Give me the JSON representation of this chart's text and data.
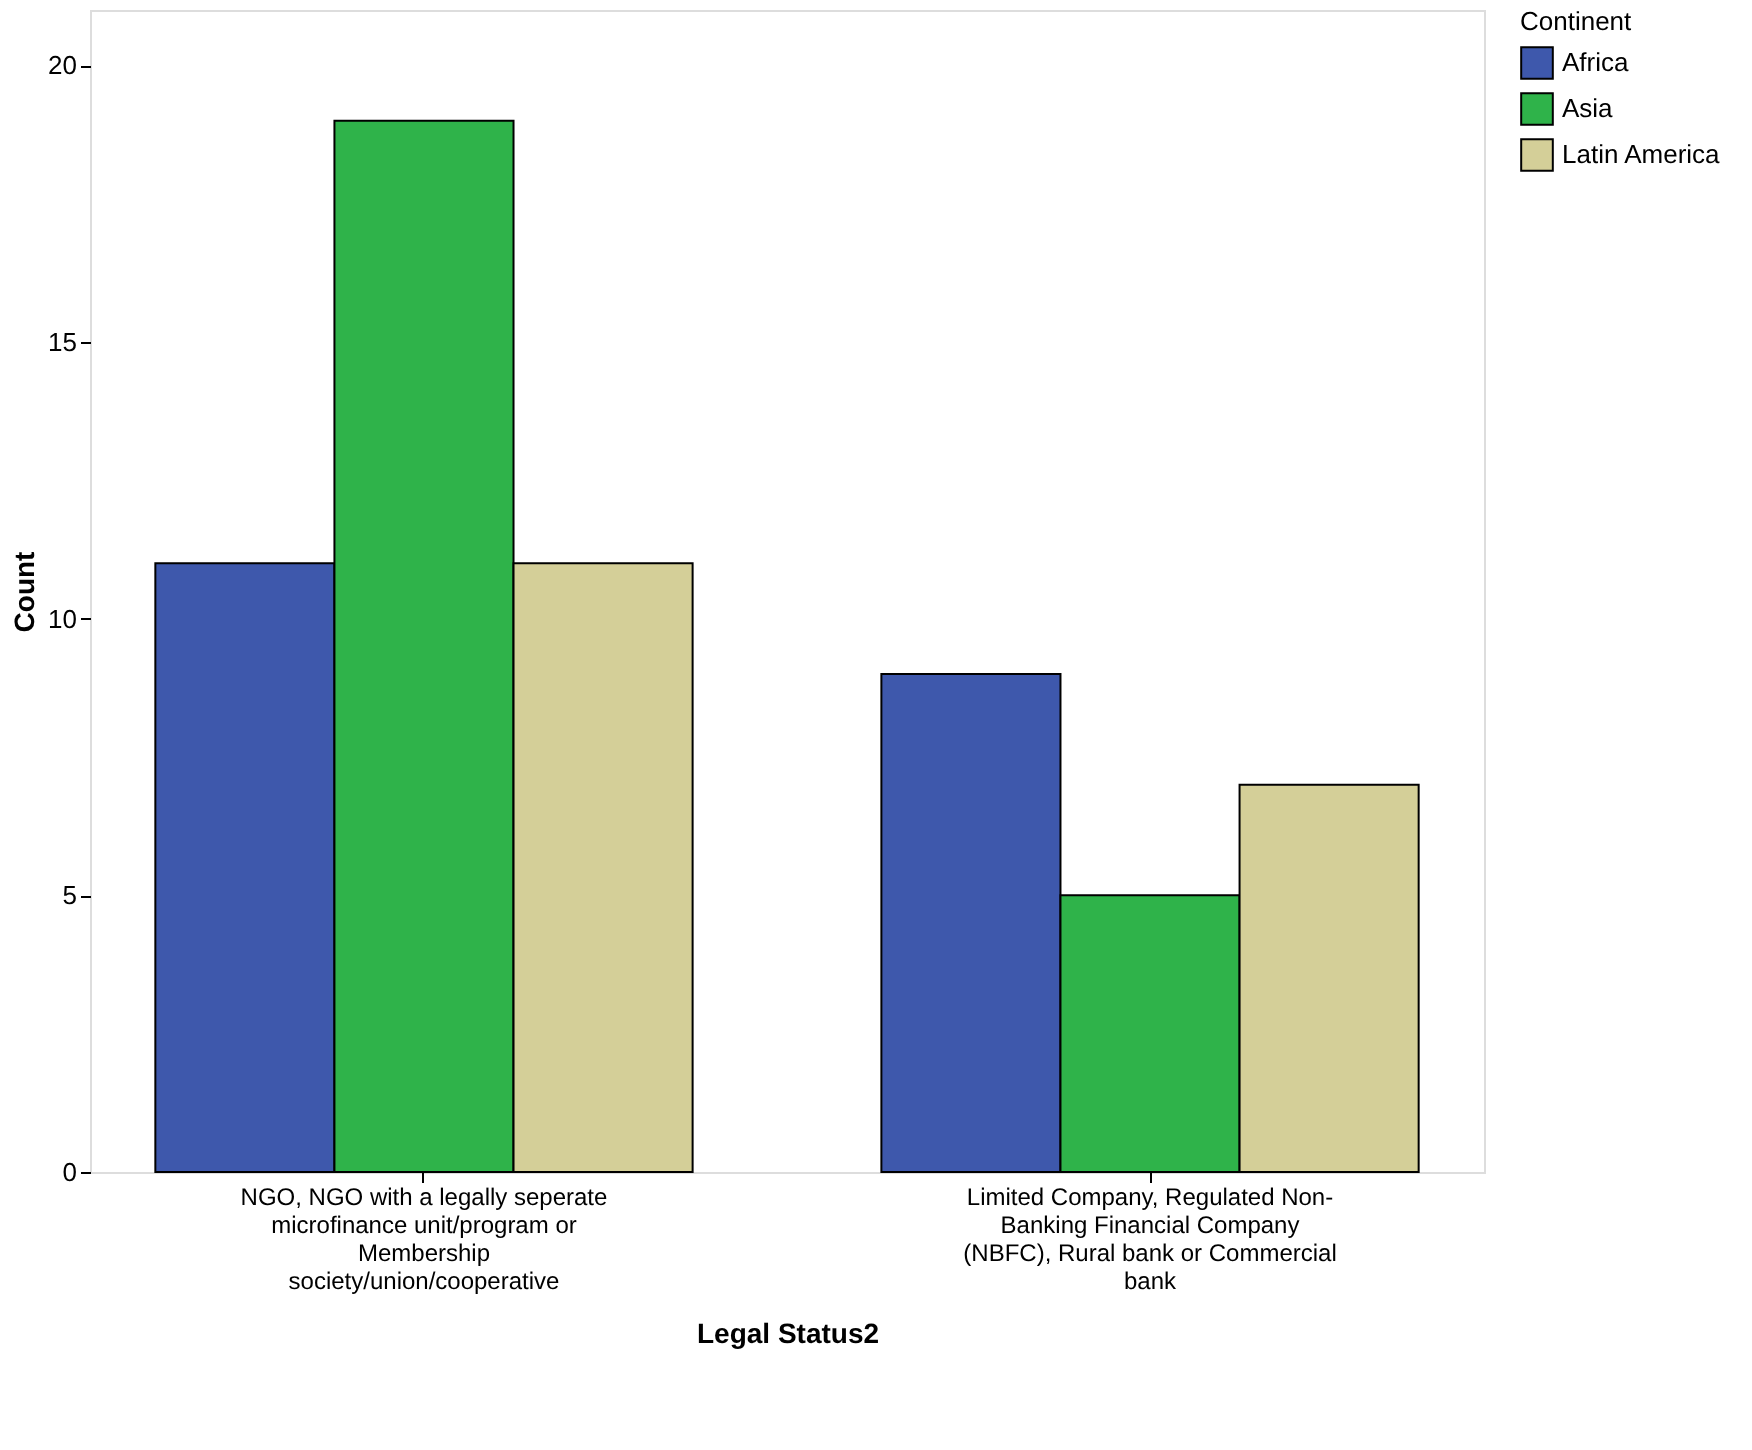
{
  "chart_data": {
    "type": "bar",
    "xlabel": "Legal Status2",
    "ylabel": "Count",
    "legend_title": "Continent",
    "categories": [
      "NGO, NGO with a legally seperate microfinance unit/program or Membership society/union/cooperative",
      "Limited Company, Regulated Non-Banking Financial Company (NBFC), Rural bank or Commercial bank"
    ],
    "series": [
      {
        "name": "Africa",
        "color": "#3e58ac",
        "values": [
          11,
          9
        ]
      },
      {
        "name": "Asia",
        "color": "#2fb34a",
        "values": [
          19,
          5
        ]
      },
      {
        "name": "Latin America",
        "color": "#d4cf98",
        "values": [
          11,
          7
        ]
      }
    ],
    "ylim": [
      0,
      21
    ],
    "yticks": [
      0,
      5,
      10,
      15,
      20
    ],
    "grid": false,
    "legend": "top right"
  }
}
